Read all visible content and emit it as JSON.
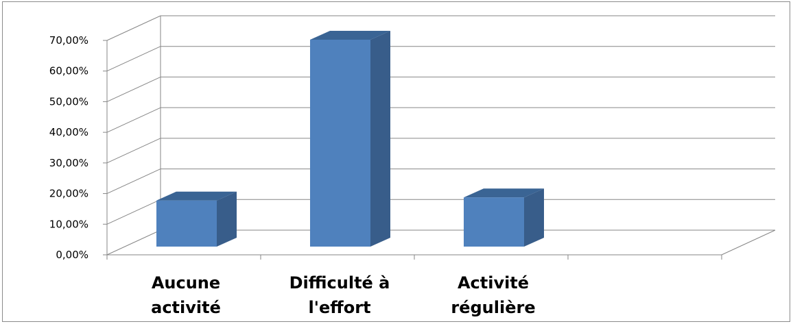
{
  "chart_data": {
    "type": "bar",
    "style": "3d-column",
    "categories": [
      [
        "Aucune",
        "activité"
      ],
      [
        "Difficulté à",
        "l'effort"
      ],
      [
        "Activité",
        "régulière"
      ]
    ],
    "values": [
      15.5,
      68.0,
      16.5
    ],
    "ylim": [
      0,
      70
    ],
    "yticks": [
      0,
      10,
      20,
      30,
      40,
      50,
      60,
      70
    ],
    "ytick_labels": [
      "0,00%",
      "10,00%",
      "20,00%",
      "30,00%",
      "40,00%",
      "50,00%",
      "60,00%",
      "70,00%"
    ],
    "grid": true,
    "legend": "none",
    "colors": {
      "bar_front": "#4f81bd",
      "bar_side": "#385d8a",
      "bar_top": "#3a6494",
      "grid": "#868686"
    }
  }
}
